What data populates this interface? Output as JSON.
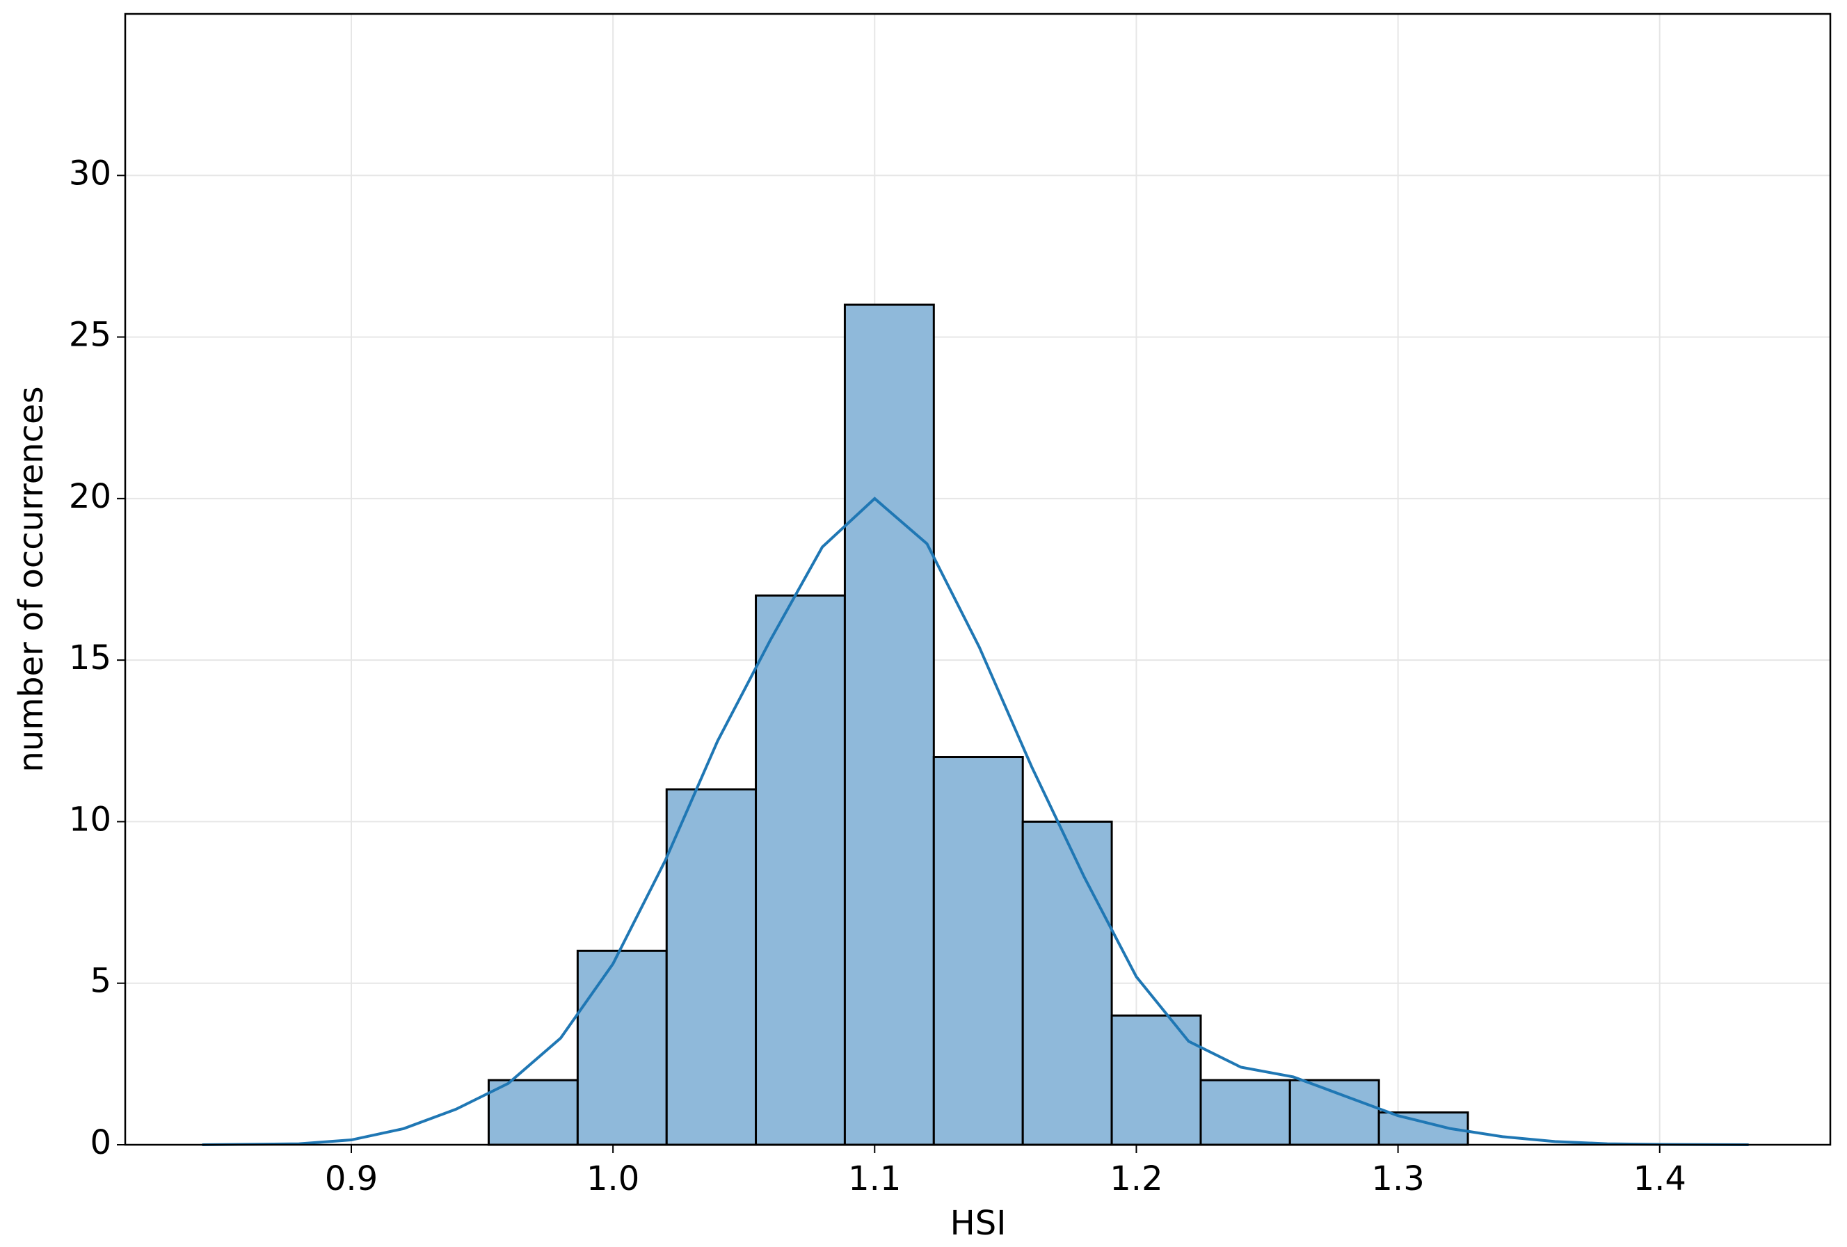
{
  "chart_data": {
    "type": "histogram",
    "x_label": "HSI",
    "y_label": "number of occurrences",
    "bins": [
      0.9525,
      0.9865,
      1.0205,
      1.0546,
      1.0886,
      1.1226,
      1.1566,
      1.1906,
      1.2246,
      1.2587,
      1.2927,
      1.3267
    ],
    "values": [
      2,
      6,
      11,
      17,
      26,
      12,
      10,
      4,
      2,
      2,
      1
    ],
    "color": "#8fb9da",
    "edge_color": "#000000",
    "kde": {
      "color": "#1f77b4",
      "x": [
        0.843,
        0.88,
        0.9,
        0.92,
        0.94,
        0.96,
        0.98,
        1.0,
        1.02,
        1.04,
        1.06,
        1.08,
        1.1,
        1.12,
        1.14,
        1.16,
        1.18,
        1.2,
        1.22,
        1.24,
        1.26,
        1.28,
        1.3,
        1.32,
        1.34,
        1.36,
        1.38,
        1.4,
        1.434
      ],
      "values": [
        0,
        0.03,
        0.15,
        0.5,
        1.1,
        1.9,
        3.3,
        5.6,
        8.8,
        12.5,
        15.6,
        18.5,
        20,
        18.6,
        15.4,
        11.7,
        8.3,
        5.2,
        3.2,
        2.4,
        2.1,
        1.5,
        0.9,
        0.5,
        0.25,
        0.1,
        0.03,
        0.01,
        0
      ]
    },
    "xlim": [
      0.8136,
      1.4652
    ],
    "ylim": [
      0,
      35
    ],
    "xticks": [
      0.9,
      {
        "value": 1,
        "label": "1.0"
      },
      1.1,
      1.2,
      1.3,
      1.4
    ],
    "yticks": [
      0,
      5,
      10,
      15,
      20,
      25,
      30
    ],
    "grid": true
  }
}
